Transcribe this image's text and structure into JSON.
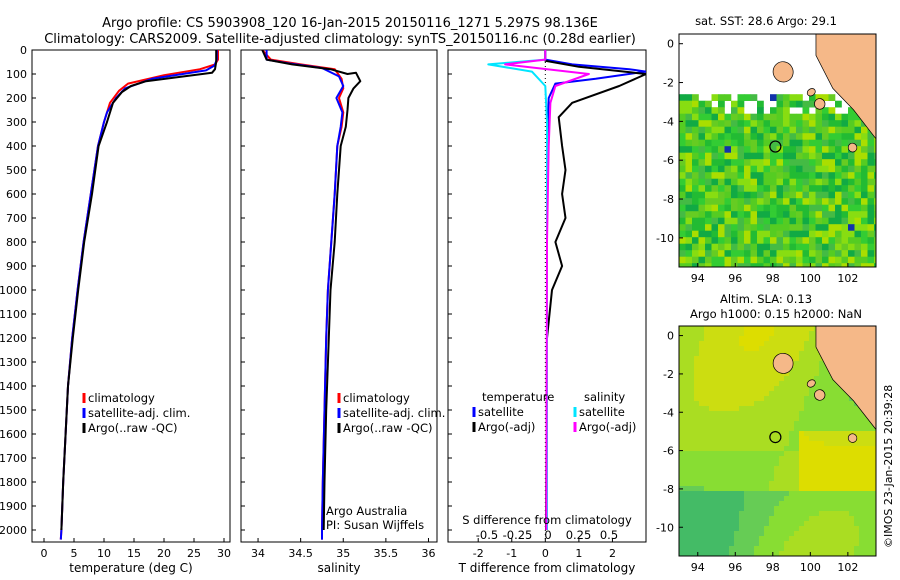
{
  "header": {
    "line1": "Argo profile: CS 5903908_120 16-Jan-2015 20150116_1271 5.297S 98.136E",
    "line2": "Climatology: CARS2009. Satellite-adjusted climatology: synTS_20150116.nc (0.28d earlier)"
  },
  "colors": {
    "climatology": "#ff0000",
    "satellite_clim": "#0000ff",
    "argo": "#000000",
    "sat_salinity": "#00e5ff",
    "argo_salinity": "#ff00ff",
    "land": "#f5b888"
  },
  "watermark": "©IMOS 23-Jan-2015 20:39:28",
  "chart_data": [
    {
      "id": "temperature",
      "type": "line",
      "xlabel": "temperature (deg C)",
      "xlim": [
        -2,
        31
      ],
      "ylim": [
        2050,
        0
      ],
      "xticks": [
        0,
        5,
        10,
        15,
        20,
        25,
        30
      ],
      "yticks": [
        0,
        100,
        200,
        300,
        400,
        500,
        600,
        700,
        800,
        900,
        1000,
        1100,
        1200,
        1300,
        1400,
        1500,
        1600,
        1700,
        1800,
        1900,
        2000
      ],
      "legend": [
        "climatology",
        "satellite-adj. clim.",
        "Argo(..raw -QC)"
      ],
      "series": [
        {
          "name": "climatology",
          "color": "#ff0000",
          "points": [
            [
              29,
              0
            ],
            [
              29,
              40
            ],
            [
              28.5,
              60
            ],
            [
              26,
              80
            ],
            [
              20,
              105
            ],
            [
              14,
              140
            ],
            [
              12.5,
              170
            ],
            [
              11,
              220
            ],
            [
              10,
              300
            ],
            [
              9,
              400
            ],
            [
              7.8,
              600
            ],
            [
              6.6,
              800
            ],
            [
              5.6,
              1000
            ],
            [
              4.7,
              1200
            ],
            [
              4,
              1400
            ],
            [
              3.6,
              1600
            ],
            [
              3.2,
              1800
            ],
            [
              2.9,
              2000
            ],
            [
              2.8,
              2040
            ]
          ]
        },
        {
          "name": "satellite-adj. clim.",
          "color": "#0000ff",
          "points": [
            [
              28.8,
              0
            ],
            [
              28.8,
              40
            ],
            [
              28.4,
              65
            ],
            [
              27,
              85
            ],
            [
              18,
              120
            ],
            [
              13.5,
              160
            ],
            [
              12,
              200
            ],
            [
              10.5,
              260
            ],
            [
              10,
              300
            ],
            [
              9,
              400
            ],
            [
              7.8,
              600
            ],
            [
              6.6,
              800
            ],
            [
              5.6,
              1000
            ],
            [
              4.7,
              1200
            ],
            [
              4,
              1400
            ],
            [
              3.6,
              1600
            ],
            [
              3.2,
              1800
            ],
            [
              2.9,
              2000
            ],
            [
              2.8,
              2040
            ]
          ]
        },
        {
          "name": "Argo(..raw -QC)",
          "color": "#000000",
          "points": [
            [
              28.7,
              0
            ],
            [
              28.7,
              50
            ],
            [
              28.5,
              80
            ],
            [
              28,
              95
            ],
            [
              17,
              130
            ],
            [
              14.5,
              150
            ],
            [
              13,
              175
            ],
            [
              11.5,
              220
            ],
            [
              10.5,
              300
            ],
            [
              9.1,
              400
            ],
            [
              8,
              600
            ],
            [
              6.7,
              800
            ],
            [
              5.7,
              1000
            ],
            [
              4.8,
              1200
            ],
            [
              4,
              1400
            ],
            [
              3.6,
              1600
            ],
            [
              3.2,
              1800
            ],
            [
              2.9,
              2000
            ]
          ]
        }
      ]
    },
    {
      "id": "salinity",
      "type": "line",
      "xlabel": "salinity",
      "xlim": [
        33.8,
        36.1
      ],
      "ylim": [
        2050,
        0
      ],
      "xticks": [
        34,
        34.5,
        35,
        35.5,
        36
      ],
      "legend": [
        "climatology",
        "satellite-adj. clim.",
        "Argo(..raw -QC)"
      ],
      "annotation": [
        "Argo Australia",
        "PI: Susan Wijffels"
      ],
      "series": [
        {
          "name": "climatology",
          "color": "#ff0000",
          "points": [
            [
              34.05,
              0
            ],
            [
              34.15,
              40
            ],
            [
              34.5,
              60
            ],
            [
              34.9,
              80
            ],
            [
              34.98,
              120
            ],
            [
              35.0,
              160
            ],
            [
              34.95,
              200
            ],
            [
              35.0,
              260
            ],
            [
              34.98,
              320
            ],
            [
              34.93,
              400
            ],
            [
              34.9,
              600
            ],
            [
              34.86,
              800
            ],
            [
              34.82,
              1000
            ],
            [
              34.8,
              1200
            ],
            [
              34.78,
              1500
            ],
            [
              34.76,
              1800
            ],
            [
              34.75,
              2000
            ],
            [
              34.75,
              2040
            ]
          ]
        },
        {
          "name": "satellite-adj. clim.",
          "color": "#0000ff",
          "points": [
            [
              34.1,
              0
            ],
            [
              34.1,
              40
            ],
            [
              34.35,
              55
            ],
            [
              34.75,
              75
            ],
            [
              34.95,
              110
            ],
            [
              35.0,
              150
            ],
            [
              34.92,
              200
            ],
            [
              34.99,
              260
            ],
            [
              34.97,
              320
            ],
            [
              34.93,
              400
            ],
            [
              34.9,
              600
            ],
            [
              34.86,
              800
            ],
            [
              34.82,
              1000
            ],
            [
              34.8,
              1200
            ],
            [
              34.78,
              1500
            ],
            [
              34.76,
              1800
            ],
            [
              34.75,
              2000
            ],
            [
              34.75,
              2040
            ]
          ]
        },
        {
          "name": "Argo(..raw -QC)",
          "color": "#000000",
          "points": [
            [
              34.05,
              0
            ],
            [
              34.1,
              40
            ],
            [
              34.4,
              60
            ],
            [
              34.85,
              80
            ],
            [
              35.05,
              100
            ],
            [
              35.15,
              95
            ],
            [
              35.2,
              130
            ],
            [
              35.12,
              160
            ],
            [
              35.06,
              200
            ],
            [
              35.05,
              250
            ],
            [
              35.03,
              320
            ],
            [
              34.97,
              400
            ],
            [
              34.93,
              600
            ],
            [
              34.9,
              800
            ],
            [
              34.85,
              1000
            ],
            [
              34.83,
              1200
            ],
            [
              34.8,
              1500
            ],
            [
              34.78,
              1800
            ],
            [
              34.77,
              2000
            ]
          ]
        }
      ]
    },
    {
      "id": "difference",
      "type": "line",
      "xlabel": "T difference from climatology",
      "xlabel_top": "S difference from climatology",
      "xlim": [
        -2.9,
        3
      ],
      "xticks": [
        -2,
        -1,
        0,
        1,
        2
      ],
      "xticks_top": [
        -0.5,
        -0.25,
        0,
        0.25,
        0.5
      ],
      "ylim": [
        2050,
        0
      ],
      "legend_headers": [
        "temperature",
        "salinity"
      ],
      "legend": [
        "satellite",
        "Argo(-adj)",
        "satellite",
        "Argo(-adj)"
      ],
      "series": [
        {
          "name": "satellite",
          "group": "temperature",
          "color": "#0000ff",
          "points": [
            [
              0,
              0
            ],
            [
              0,
              40
            ],
            [
              0.8,
              60
            ],
            [
              2.5,
              80
            ],
            [
              3,
              90
            ],
            [
              1.5,
              120
            ],
            [
              0.3,
              140
            ],
            [
              0.1,
              200
            ],
            [
              0.05,
              400
            ],
            [
              0.05,
              2000
            ]
          ]
        },
        {
          "name": "Argo(-adj)",
          "group": "temperature",
          "color": "#000000",
          "points": [
            [
              0,
              0
            ],
            [
              0,
              45
            ],
            [
              1,
              70
            ],
            [
              3,
              100
            ],
            [
              2.2,
              150
            ],
            [
              0.8,
              220
            ],
            [
              0.4,
              280
            ],
            [
              0.5,
              400
            ],
            [
              0.6,
              500
            ],
            [
              0.5,
              600
            ],
            [
              0.6,
              700
            ],
            [
              0.3,
              800
            ],
            [
              0.5,
              900
            ],
            [
              0.2,
              1000
            ],
            [
              0.05,
              1200
            ],
            [
              0.02,
              2000
            ]
          ]
        },
        {
          "name": "satellite",
          "group": "salinity",
          "color": "#00e5ff",
          "points": [
            [
              0,
              0
            ],
            [
              0,
              40
            ],
            [
              -1.7,
              60
            ],
            [
              -0.4,
              90
            ],
            [
              0,
              150
            ],
            [
              0.05,
              300
            ],
            [
              0.05,
              2000
            ]
          ]
        },
        {
          "name": "Argo(-adj)",
          "group": "salinity",
          "color": "#ff00ff",
          "points": [
            [
              0,
              0
            ],
            [
              0,
              40
            ],
            [
              -1.2,
              60
            ],
            [
              1.3,
              100
            ],
            [
              0.3,
              150
            ],
            [
              0.15,
              220
            ],
            [
              0.1,
              400
            ],
            [
              0.05,
              800
            ],
            [
              0.03,
              2000
            ]
          ]
        }
      ]
    },
    {
      "id": "sst-map",
      "type": "heatmap",
      "title": "sat. SST: 28.6  Argo: 29.1",
      "xticks": [
        94,
        96,
        98,
        100,
        102
      ],
      "yticks": [
        0,
        -2,
        -4,
        -6,
        -8,
        -10
      ],
      "xlim": [
        93,
        103.5
      ],
      "ylim": [
        -11.5,
        0.5
      ],
      "marker": {
        "lon": 98.136,
        "lat": -5.297
      }
    },
    {
      "id": "sla-map",
      "type": "heatmap",
      "title": "Altim. SLA: 0.13",
      "subtitle": "Argo h1000: 0.15 h2000: NaN",
      "xticks": [
        94,
        96,
        98,
        100,
        102
      ],
      "yticks": [
        0,
        -2,
        -4,
        -6,
        -8,
        -10
      ],
      "xlim": [
        93,
        103.5
      ],
      "ylim": [
        -11.5,
        0.5
      ],
      "marker": {
        "lon": 98.136,
        "lat": -5.297
      }
    }
  ]
}
